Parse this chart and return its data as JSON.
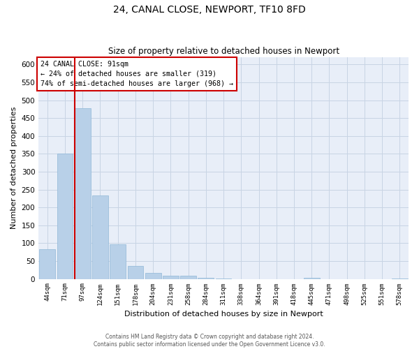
{
  "title": "24, CANAL CLOSE, NEWPORT, TF10 8FD",
  "subtitle": "Size of property relative to detached houses in Newport",
  "xlabel": "Distribution of detached houses by size in Newport",
  "ylabel": "Number of detached properties",
  "categories": [
    "44sqm",
    "71sqm",
    "97sqm",
    "124sqm",
    "151sqm",
    "178sqm",
    "204sqm",
    "231sqm",
    "258sqm",
    "284sqm",
    "311sqm",
    "338sqm",
    "364sqm",
    "391sqm",
    "418sqm",
    "445sqm",
    "471sqm",
    "498sqm",
    "525sqm",
    "551sqm",
    "578sqm"
  ],
  "values": [
    83,
    350,
    478,
    234,
    96,
    37,
    17,
    8,
    8,
    4,
    2,
    0,
    0,
    0,
    0,
    3,
    0,
    0,
    0,
    0,
    2
  ],
  "bar_color": "#b8d0e8",
  "bar_edge_color": "#90b8d8",
  "marker_line_color": "#cc0000",
  "annotation_title": "24 CANAL CLOSE: 91sqm",
  "annotation_line1": "← 24% of detached houses are smaller (319)",
  "annotation_line2": "74% of semi-detached houses are larger (968) →",
  "annotation_box_color": "#cc0000",
  "ylim": [
    0,
    620
  ],
  "yticks": [
    0,
    50,
    100,
    150,
    200,
    250,
    300,
    350,
    400,
    450,
    500,
    550,
    600
  ],
  "footer_line1": "Contains HM Land Registry data © Crown copyright and database right 2024.",
  "footer_line2": "Contains public sector information licensed under the Open Government Licence v3.0.",
  "background_color": "#ffffff",
  "plot_bg_color": "#e8eef8",
  "grid_color": "#c8d4e4"
}
